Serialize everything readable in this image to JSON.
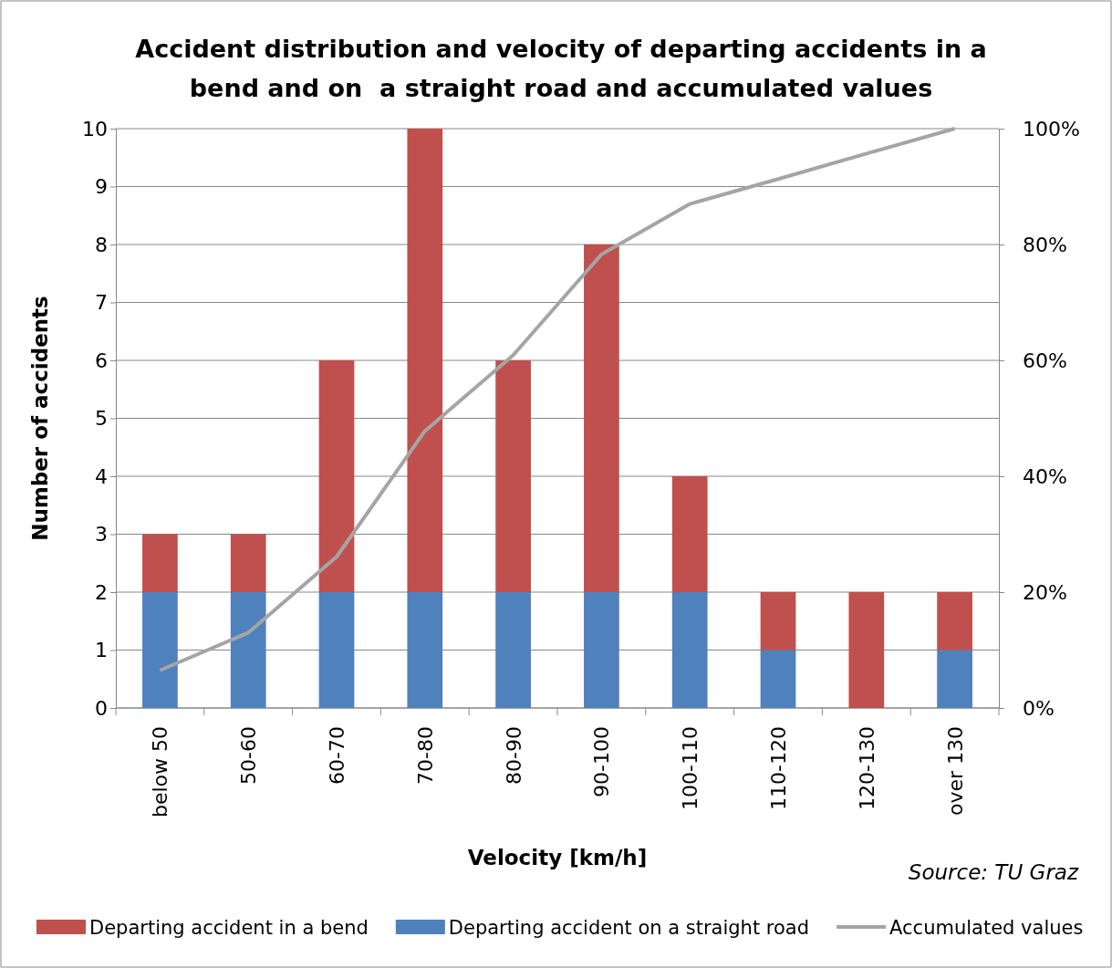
{
  "chart_data": {
    "type": "bar",
    "title": "Accident distribution and velocity of departing accidents in a bend and on  a straight road and accumulated values",
    "xlabel": "Velocity [km/h]",
    "ylabel": "Number of accidents",
    "categories": [
      "below 50",
      "50-60",
      "60-70",
      "70-80",
      "80-90",
      "90-100",
      "100-110",
      "110-120",
      "120-130",
      "over 130"
    ],
    "stacked": true,
    "series": [
      {
        "name": "Departing accident on a straight road",
        "color": "#4f81bd",
        "values": [
          2,
          2,
          2,
          2,
          2,
          2,
          2,
          1,
          0,
          1
        ]
      },
      {
        "name": "Departing accident in a bend",
        "color": "#c0504d",
        "values": [
          1,
          1,
          4,
          8,
          4,
          6,
          2,
          1,
          2,
          1
        ]
      },
      {
        "name": "Accumulated values",
        "type": "line",
        "axis": "y2",
        "color": "#a5a5a5",
        "marker": "none",
        "values": [
          6.5,
          13,
          26.1,
          47.8,
          60.9,
          78.3,
          87,
          91.3,
          95.7,
          100
        ]
      }
    ],
    "ylim": [
      0,
      10
    ],
    "yticks": [
      0,
      1,
      2,
      3,
      4,
      5,
      6,
      7,
      8,
      9,
      10
    ],
    "y2lim": [
      0,
      100
    ],
    "y2ticks": [
      {
        "value": 0,
        "label": "0%"
      },
      {
        "value": 20,
        "label": "20%"
      },
      {
        "value": 40,
        "label": "40%"
      },
      {
        "value": 60,
        "label": "60%"
      },
      {
        "value": 80,
        "label": "80%"
      },
      {
        "value": 100,
        "label": "100%"
      }
    ],
    "grid": "y",
    "legend": "bottom",
    "annotations": [
      "Source: TU Graz"
    ]
  }
}
